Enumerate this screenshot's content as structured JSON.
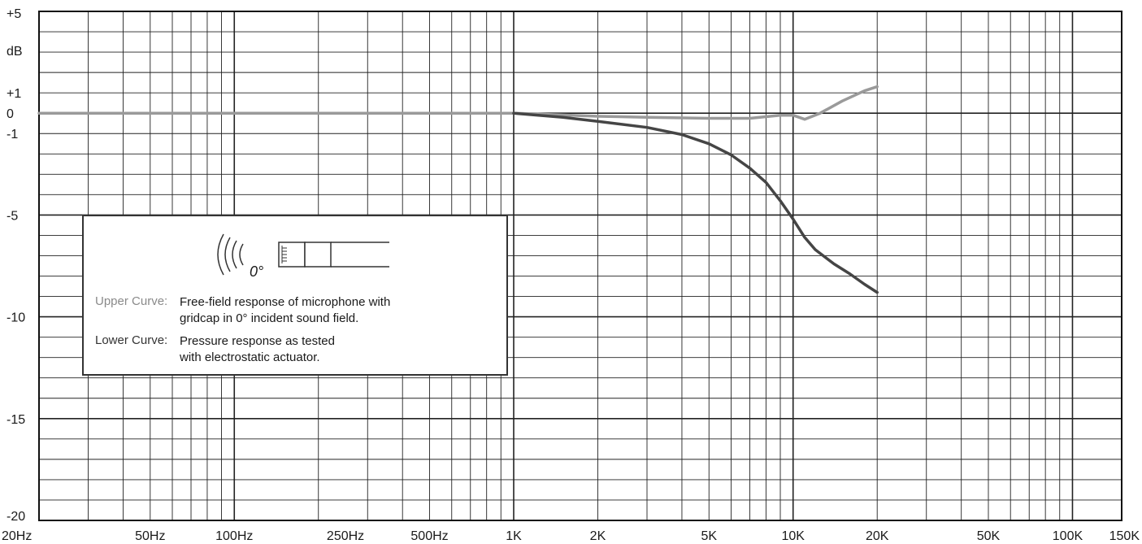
{
  "chart_data": {
    "type": "line",
    "xscale": "log",
    "xlim": [
      20,
      150000
    ],
    "ylim": [
      -20,
      5
    ],
    "grid": true,
    "ylabel": "dB",
    "x_ticks": [
      {
        "value": 20,
        "label": "20Hz"
      },
      {
        "value": 50,
        "label": "50Hz"
      },
      {
        "value": 100,
        "label": "100Hz"
      },
      {
        "value": 250,
        "label": "250Hz"
      },
      {
        "value": 500,
        "label": "500Hz"
      },
      {
        "value": 1000,
        "label": "1K"
      },
      {
        "value": 2000,
        "label": "2K"
      },
      {
        "value": 5000,
        "label": "5K"
      },
      {
        "value": 10000,
        "label": "10K"
      },
      {
        "value": 20000,
        "label": "20K"
      },
      {
        "value": 50000,
        "label": "50K"
      },
      {
        "value": 100000,
        "label": "100K"
      },
      {
        "value": 150000,
        "label": "150K"
      }
    ],
    "y_ticks": [
      {
        "value": 5,
        "label": "+5"
      },
      {
        "value": 1,
        "label": "+1"
      },
      {
        "value": 0,
        "label": "0"
      },
      {
        "value": -1,
        "label": "-1"
      },
      {
        "value": -5,
        "label": "-5"
      },
      {
        "value": -10,
        "label": "-10"
      },
      {
        "value": -15,
        "label": "-15"
      },
      {
        "value": -20,
        "label": "-20"
      }
    ],
    "series": [
      {
        "name": "Upper Curve",
        "color": "#9a9a9a",
        "x": [
          20,
          100,
          500,
          1000,
          2000,
          3000,
          5000,
          7000,
          9000,
          10000,
          11000,
          12500,
          15000,
          18000,
          20000
        ],
        "y": [
          0,
          0,
          0,
          0,
          -0.15,
          -0.2,
          -0.25,
          -0.25,
          -0.1,
          -0.1,
          -0.3,
          0,
          0.6,
          1.1,
          1.3
        ]
      },
      {
        "name": "Lower Curve",
        "color": "#454545",
        "x": [
          1000,
          1500,
          2000,
          3000,
          4000,
          5000,
          6000,
          7000,
          8000,
          9000,
          10000,
          11000,
          12000,
          14000,
          16000,
          18000,
          20000
        ],
        "y": [
          0,
          -0.2,
          -0.4,
          -0.7,
          -1.05,
          -1.5,
          -2.05,
          -2.7,
          -3.4,
          -4.3,
          -5.2,
          -6.1,
          -6.7,
          -7.4,
          -7.9,
          -8.4,
          -8.8
        ]
      }
    ]
  },
  "legend": {
    "angle": "0°",
    "upper_label": "Upper Curve:",
    "upper_text_1": "Free-field response of microphone with",
    "upper_text_2": "gridcap in 0° incident sound field.",
    "lower_label": "Lower Curve:",
    "lower_text_1": "Pressure response as tested",
    "lower_text_2": "with electrostatic actuator."
  }
}
